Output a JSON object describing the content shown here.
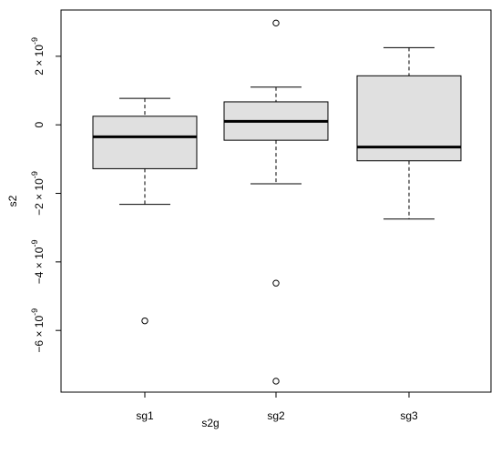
{
  "chart_data": {
    "type": "box",
    "title": "",
    "xlabel": "s2g",
    "ylabel": "s2",
    "ylim": [
      -7.8e-09,
      3.35e-09
    ],
    "yticks": [
      {
        "value": -6e-09,
        "label_coef": "−6",
        "label_exp": "-9"
      },
      {
        "value": -4e-09,
        "label_coef": "−4",
        "label_exp": "-9"
      },
      {
        "value": -2e-09,
        "label_coef": "−2",
        "label_exp": "-9"
      },
      {
        "value": 0,
        "label_coef": "0",
        "label_exp": ""
      },
      {
        "value": 2e-09,
        "label_coef": "2",
        "label_exp": "-9"
      }
    ],
    "categories": [
      "sg1",
      "sg2",
      "sg3"
    ],
    "series": [
      {
        "group": "sg1",
        "whisker_low": -2.32e-09,
        "q1": -1.28e-09,
        "median": -3.5e-10,
        "q3": 2.5e-10,
        "whisker_high": 7.7e-10,
        "outliers": [
          -5.72e-09
        ]
      },
      {
        "group": "sg2",
        "whisker_low": -1.72e-09,
        "q1": -4.5e-10,
        "median": 1e-10,
        "q3": 6.7e-10,
        "whisker_high": 1.1e-09,
        "outliers": [
          2.97e-09,
          -4.62e-09,
          -7.48e-09
        ]
      },
      {
        "group": "sg3",
        "whisker_low": -2.75e-09,
        "q1": -1.05e-09,
        "median": -6.5e-10,
        "q3": 1.43e-09,
        "whisker_high": 2.25e-09,
        "outliers": []
      }
    ],
    "style": {
      "box_fill": "#e0e0e0",
      "stroke": "#000000",
      "background": "#ffffff"
    }
  }
}
